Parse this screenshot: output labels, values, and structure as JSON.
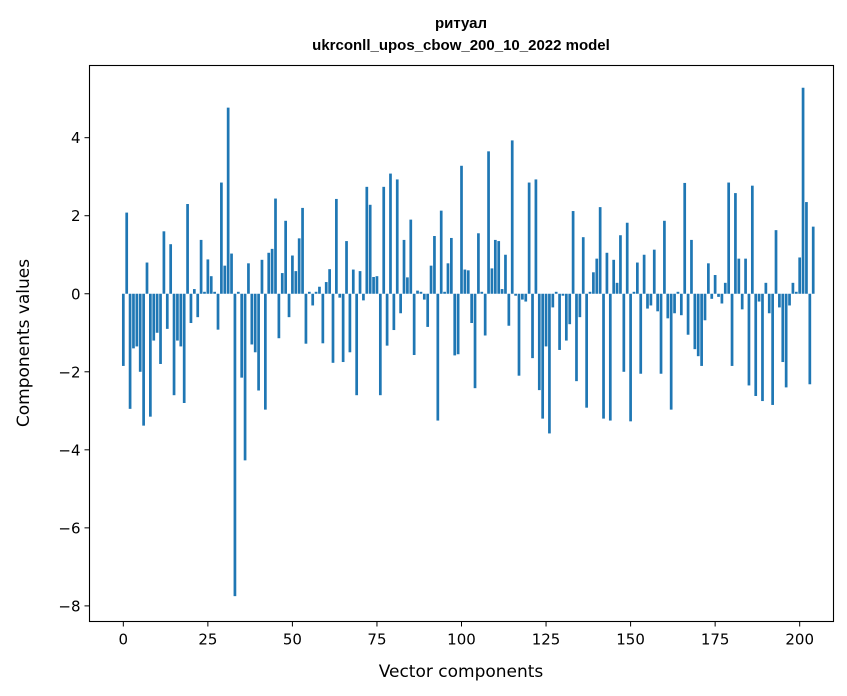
{
  "chart_data": {
    "type": "bar",
    "title": "ритуал",
    "subtitle": "ukrconll_upos_cbow_200_10_2022 model",
    "xlabel": "Vector components",
    "ylabel": "Components values",
    "xlim": [
      -10,
      210
    ],
    "ylim": [
      -8.4,
      5.85
    ],
    "xticks": [
      0,
      25,
      50,
      75,
      100,
      125,
      150,
      175,
      200
    ],
    "xtick_labels": [
      "0",
      "25",
      "50",
      "75",
      "100",
      "125",
      "150",
      "175",
      "200"
    ],
    "yticks": [
      -8,
      -6,
      -4,
      -2,
      0,
      2,
      4
    ],
    "ytick_labels": [
      "−8",
      "−6",
      "−4",
      "−2",
      "0",
      "2",
      "4"
    ],
    "bar_color": "#1f77b4",
    "values": [
      -1.85,
      2.08,
      -2.95,
      -1.4,
      -1.35,
      -2.0,
      -3.38,
      0.8,
      -3.15,
      -1.2,
      -1.0,
      -1.8,
      1.6,
      -0.9,
      1.27,
      -2.6,
      -1.2,
      -1.35,
      -2.8,
      2.3,
      -0.75,
      0.12,
      -0.6,
      1.38,
      0.05,
      0.88,
      0.45,
      0.05,
      -0.92,
      2.85,
      0.72,
      4.77,
      1.03,
      -7.75,
      0.05,
      -2.15,
      -4.27,
      0.78,
      -1.3,
      -1.5,
      -2.48,
      0.87,
      -2.97,
      1.05,
      1.15,
      2.44,
      -1.14,
      0.53,
      1.87,
      -0.6,
      0.98,
      0.58,
      1.42,
      2.2,
      -1.28,
      0.05,
      -0.3,
      0.05,
      0.18,
      -1.27,
      0.3,
      0.63,
      -1.77,
      2.43,
      -0.1,
      -1.75,
      1.35,
      -1.5,
      0.62,
      -2.6,
      0.58,
      -0.17,
      2.74,
      2.28,
      0.43,
      0.45,
      -2.6,
      2.74,
      -1.33,
      3.08,
      -0.93,
      2.93,
      -0.5,
      1.38,
      0.42,
      1.9,
      -1.57,
      0.08,
      0.05,
      -0.15,
      -0.85,
      0.72,
      1.48,
      -3.25,
      2.13,
      0.05,
      0.78,
      1.43,
      -1.58,
      -1.55,
      3.28,
      0.62,
      0.6,
      -0.75,
      -2.42,
      1.55,
      0.05,
      -1.07,
      3.65,
      0.65,
      1.38,
      1.35,
      0.12,
      1.0,
      -0.82,
      3.93,
      -0.05,
      -2.1,
      -0.15,
      -0.2,
      2.85,
      -1.65,
      2.93,
      -2.47,
      -3.2,
      -1.35,
      -3.58,
      -0.35,
      0.05,
      -1.44,
      -0.05,
      -1.2,
      -0.78,
      2.12,
      -2.24,
      -0.6,
      1.45,
      -2.92,
      0.05,
      0.55,
      0.9,
      2.22,
      -3.2,
      1.05,
      -3.25,
      0.87,
      0.28,
      1.5,
      -2.0,
      1.82,
      -3.27,
      0.05,
      0.8,
      -2.05,
      1.0,
      -0.38,
      -0.3,
      1.13,
      -0.45,
      -2.05,
      1.87,
      -0.63,
      -2.97,
      -0.5,
      0.05,
      -0.55,
      2.84,
      -1.05,
      1.38,
      -1.42,
      -1.6,
      -1.85,
      -0.68,
      0.78,
      -0.13,
      0.48,
      -0.08,
      -0.25,
      0.28,
      2.85,
      -1.85,
      2.58,
      0.9,
      -0.4,
      0.9,
      -2.35,
      2.77,
      -2.62,
      -0.2,
      -2.75,
      0.28,
      -0.5,
      -2.85,
      1.63,
      -0.35,
      -1.75,
      -2.4,
      -0.3,
      0.28,
      0.05,
      0.93,
      5.28,
      2.35,
      -2.32,
      1.72
    ]
  }
}
